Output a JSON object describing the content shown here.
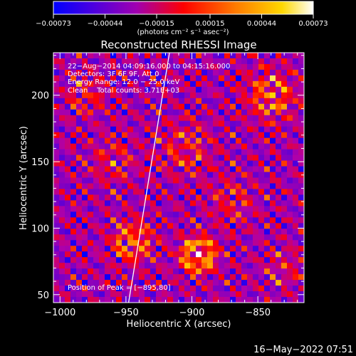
{
  "chart_data": {
    "type": "heatmap",
    "title": "Reconstructed RHESSI Image",
    "xlabel": "Heliocentric X (arcsec)",
    "ylabel": "Heliocentric Y (arcsec)",
    "xlim": [
      -1005,
      -815
    ],
    "ylim": [
      44,
      232
    ],
    "x_ticks": [
      -1000,
      -950,
      -900,
      -850
    ],
    "x_tick_labels": [
      "−1000",
      "−950",
      "−900",
      "−850"
    ],
    "y_ticks": [
      50,
      100,
      150,
      200
    ],
    "y_tick_labels": [
      "50",
      "100",
      "150",
      "200"
    ],
    "colorbar": {
      "range": [
        -0.00073,
        0.00073
      ],
      "ticks": [
        -0.00073,
        -0.00044,
        -0.00015,
        0.00015,
        0.00044,
        0.00073
      ],
      "tick_labels": [
        "−0.00073",
        "−0.00044",
        "−0.00015",
        "0.00015",
        "0.00044",
        "0.00073"
      ],
      "units_label": "(photons cm⁻² s⁻¹ asec⁻²)",
      "colors": [
        "#0000ff",
        "#5a00d6",
        "#b000a8",
        "#ff0000",
        "#ff8c00",
        "#ffdd00",
        "#ffffff"
      ]
    },
    "annotations": [
      "22−Aug−2014 04:09:16.000 to 04:15:16.000",
      "Detectors: 3F 6F 9F, Att 0",
      "Energy Range: 12.0 − 25.0 keV",
      "Clean    Total counts: 3.71E+03"
    ],
    "peak_label": "Position of Peak = [−895,80]",
    "peak_position": [
      -895,
      80
    ],
    "limb_line": [
      [
        -948,
        44
      ],
      [
        -917,
        232
      ]
    ],
    "grid": false,
    "legend": "none"
  },
  "timestamp": "16−May−2022 07:51"
}
